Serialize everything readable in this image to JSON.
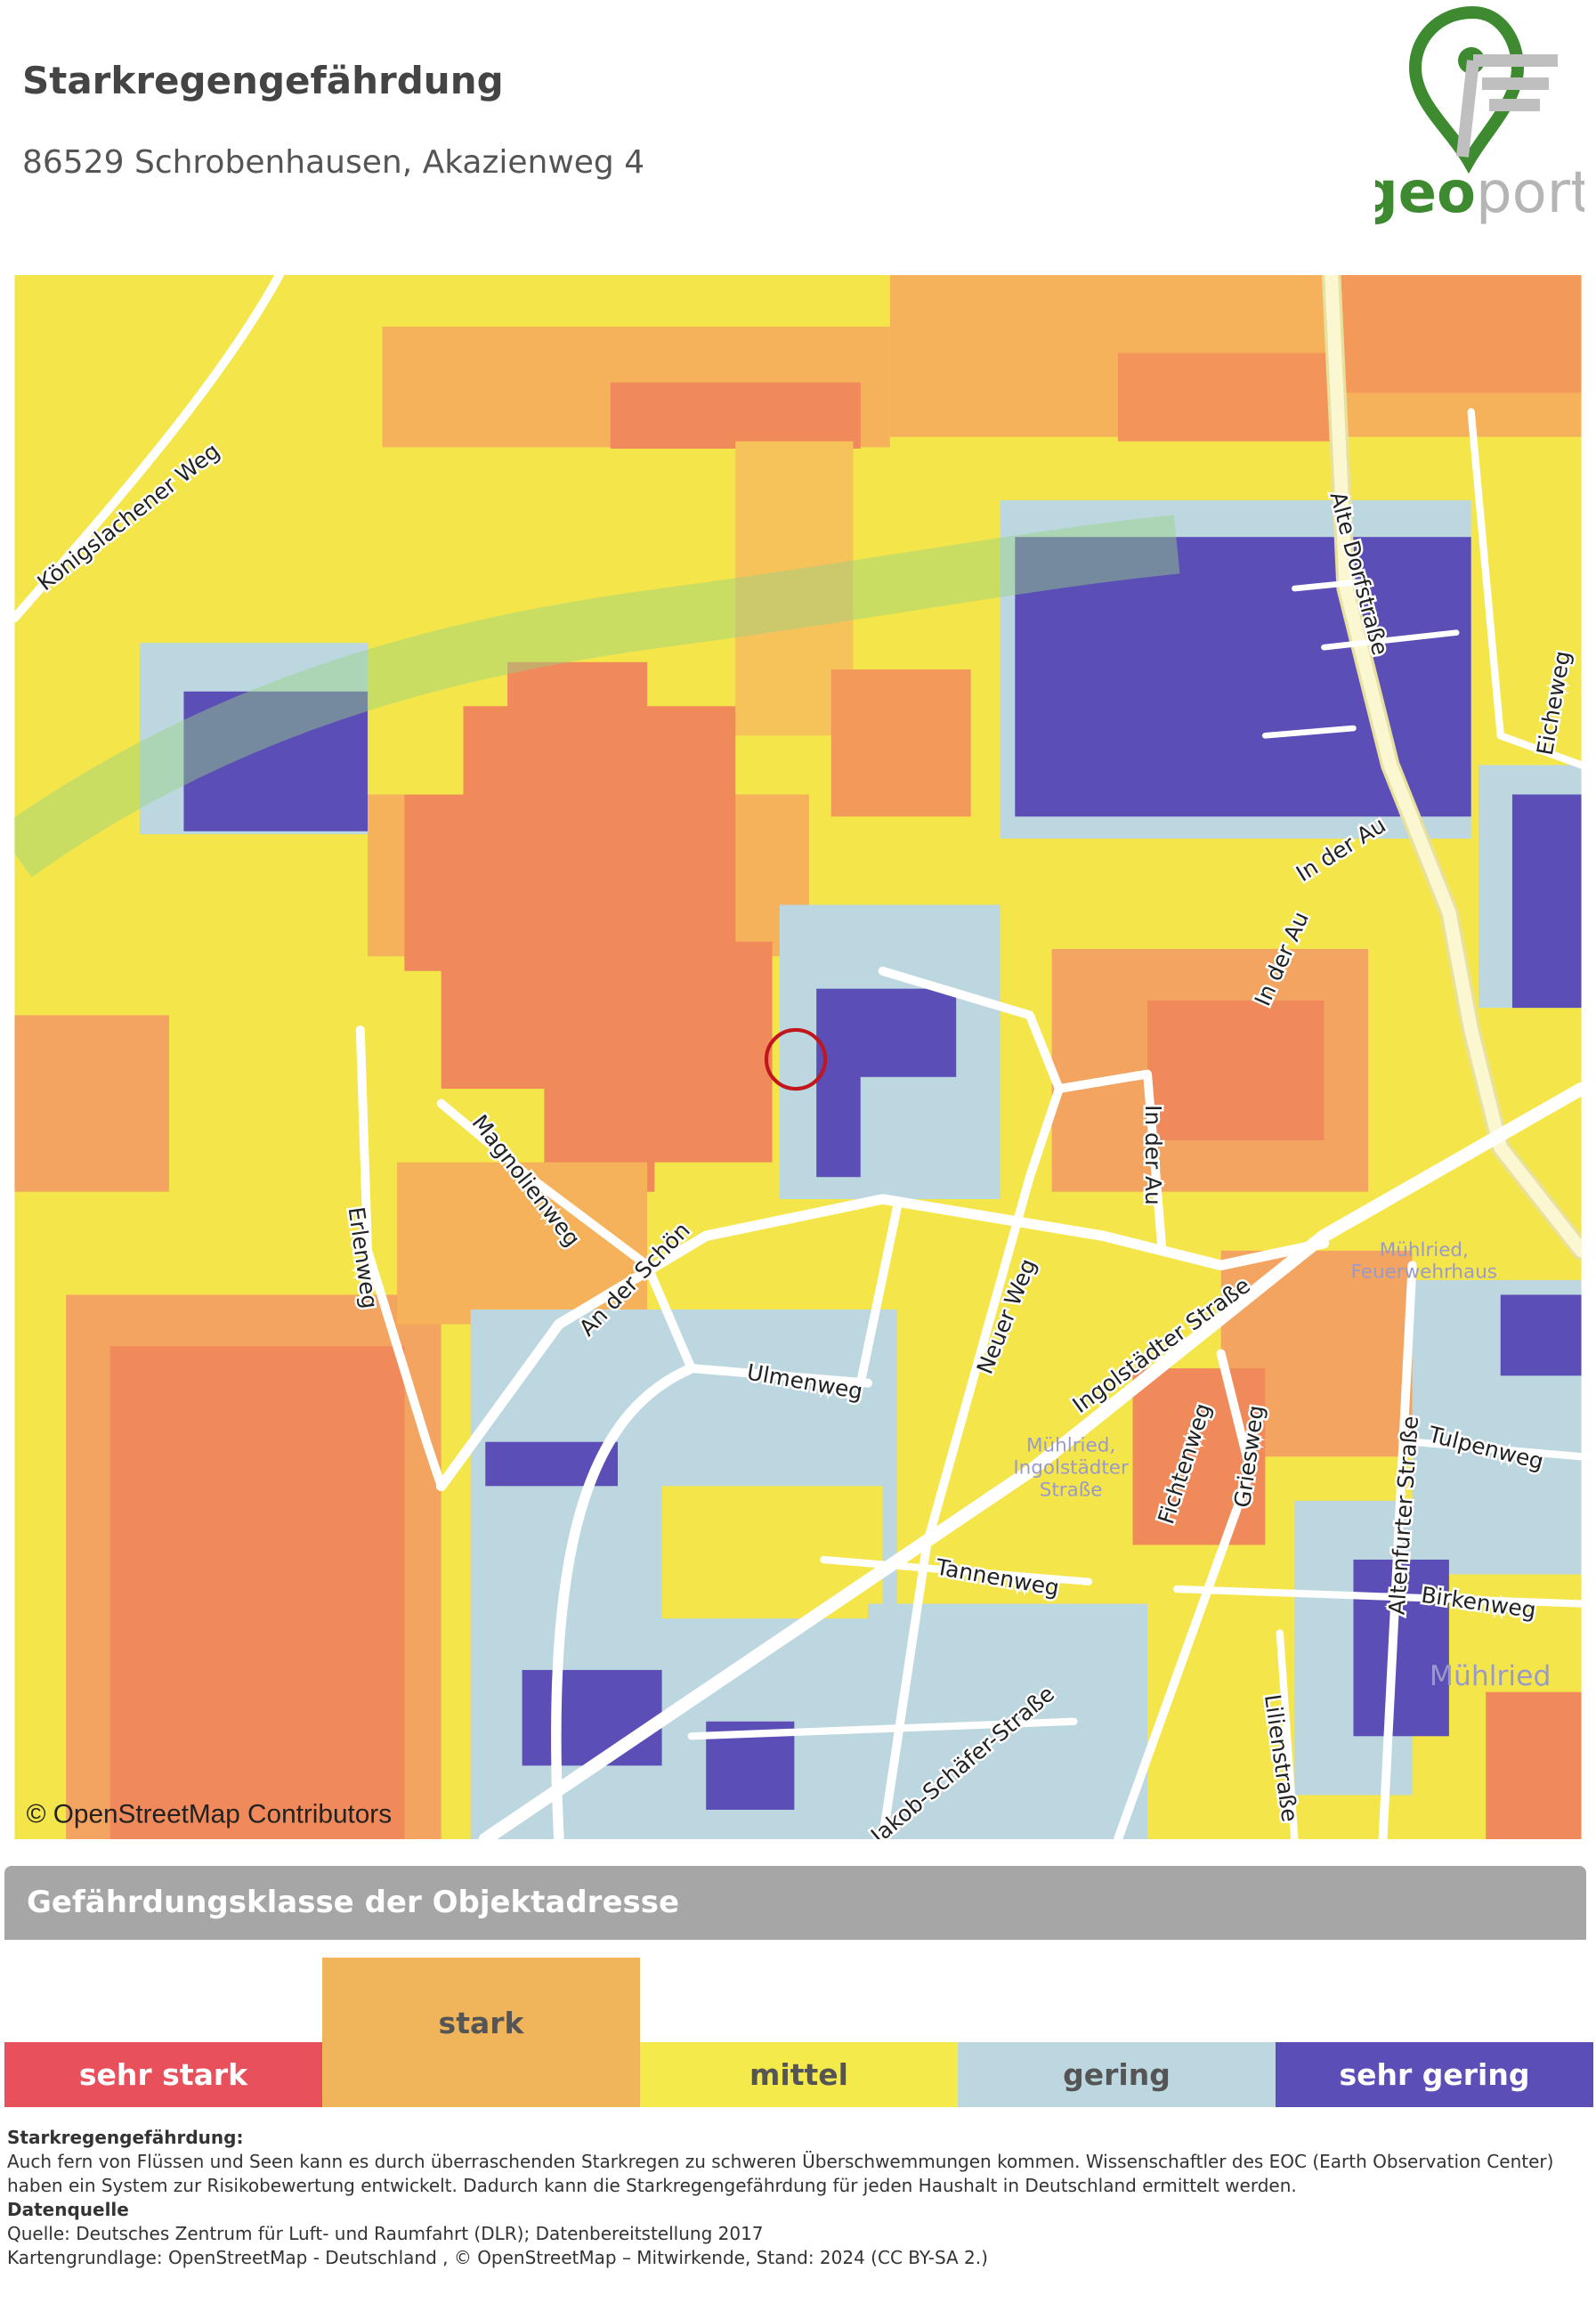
{
  "header": {
    "title": "Starkregengefährdung",
    "address": "86529 Schrobenhausen, Akazienweg 4"
  },
  "logo": {
    "part1": "geo",
    "part2": "port"
  },
  "map": {
    "attribution": "© OpenStreetMap Contributors",
    "street_labels": [
      "Königslachener Weg",
      "Alte Dorfstraße",
      "Eicheweg",
      "In der Au",
      "In der Au",
      "In der Au",
      "Magnolienweg",
      "Erlenweg",
      "An der Schön",
      "Ulmenweg",
      "Neuer Weg",
      "Ingolstädter Straße",
      "Fichtenweg",
      "Griesweg",
      "Altenfurter Straße",
      "Tulpenweg",
      "Birkenweg",
      "Tannenweg",
      "Jakob-Schäfer-Straße",
      "Lilienstraße"
    ],
    "place_labels": [
      [
        "Mühlried,",
        "Feuerwehrhaus"
      ],
      [
        "Mühlried,",
        "Ingolstädter",
        "Straße"
      ],
      [
        "Mühlried"
      ]
    ]
  },
  "legend": {
    "title": "Gefährdungsklasse der Objektadresse",
    "classes": [
      {
        "name": "sehr stark",
        "color": "#e8515c",
        "selected": false
      },
      {
        "name": "stark",
        "color": "#f0b55a",
        "selected": true
      },
      {
        "name": "mittel",
        "color": "#f4ea4c",
        "selected": false
      },
      {
        "name": "gering",
        "color": "#bdd7e1",
        "selected": false
      },
      {
        "name": "sehr gering",
        "color": "#5b4fb7",
        "selected": false
      }
    ]
  },
  "footer": {
    "heading": "Starkregengefährdung:",
    "text": "Auch fern von Flüssen und Seen kann es durch überraschenden Starkregen zu schweren Überschwemmungen kommen. Wissenschaftler des EOC (Earth Observation Center) haben ein System zur Risikobewertung entwickelt. Dadurch kann die Starkregengefährdung für jeden Haushalt in Deutschland ermittelt werden.",
    "source_heading": "Datenquelle",
    "source_lines": [
      "Quelle: Deutsches Zentrum für Luft- und Raumfahrt (DLR); Datenbereitstellung 2017",
      "Kartengrundlage: OpenStreetMap - Deutschland , © OpenStreetMap – Mitwirkende, Stand: 2024 (CC BY-SA 2.)"
    ]
  }
}
